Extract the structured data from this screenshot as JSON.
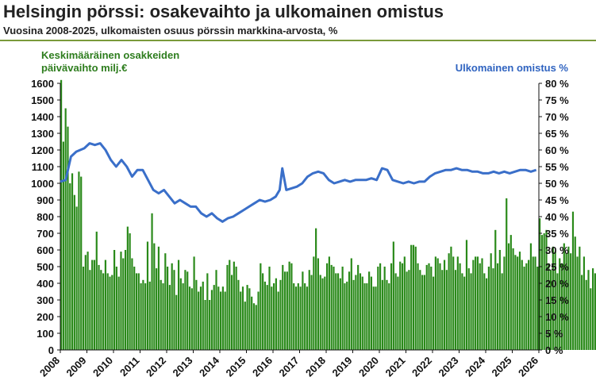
{
  "title": "Helsingin pörssi: osakevaihto ja ulkomainen omistus",
  "subtitle": "Vuosina 2008-2025, ulkomaisten osuus pörssin markkina-arvosta, %",
  "colors": {
    "bars": "#2a8a1a",
    "line": "#3a6fc9",
    "rule": "#7a9a3a"
  },
  "chart_data": {
    "type": "bar",
    "left_axis": {
      "label_line1": "Keskimääräinen osakkeiden",
      "label_line2": "päivävaihto milj.€",
      "ylim": [
        0,
        1600
      ],
      "ticks": [
        "0",
        "100",
        "200",
        "300",
        "400",
        "500",
        "600",
        "700",
        "800",
        "900",
        "1000",
        "1100",
        "1200",
        "1300",
        "1400",
        "1500",
        "1600"
      ]
    },
    "right_axis": {
      "label": "Ulkomainen omistus %",
      "ylim": [
        0,
        80
      ],
      "ticks": [
        "0 %",
        "5 %",
        "10 %",
        "15 %",
        "20 %",
        "25 %",
        "30 %",
        "35 %",
        "40 %",
        "45 %",
        "50 %",
        "55 %",
        "60 %",
        "65 %",
        "70 %",
        "75 %",
        "80 %"
      ]
    },
    "x_axis": {
      "ticks": [
        "2008",
        "2009",
        "2010",
        "2011",
        "2012",
        "2013",
        "2014",
        "2015",
        "2016",
        "2017",
        "2018",
        "2019",
        "2020",
        "2021",
        "2022",
        "2023",
        "2024",
        "2025",
        "2026"
      ],
      "range": [
        2008,
        2026
      ]
    },
    "series": [
      {
        "kind": "bar",
        "x_start": 2008.0,
        "step_months": 1,
        "values": [
          1620,
          1250,
          1450,
          1340,
          1000,
          1060,
          930,
          860,
          1070,
          1040,
          500,
          570,
          590,
          480,
          540,
          540,
          710,
          510,
          480,
          460,
          540,
          460,
          440,
          450,
          600,
          500,
          440,
          590,
          550,
          600,
          740,
          700,
          550,
          500,
          460,
          460,
          400,
          420,
          400,
          650,
          410,
          820,
          640,
          490,
          620,
          420,
          400,
          580,
          500,
          390,
          520,
          480,
          330,
          540,
          430,
          400,
          480,
          470,
          380,
          370,
          560,
          420,
          350,
          380,
          410,
          300,
          460,
          300,
          360,
          390,
          480,
          380,
          350,
          380,
          350,
          510,
          540,
          450,
          530,
          500,
          420,
          350,
          380,
          290,
          390,
          370,
          320,
          280,
          270,
          350,
          520,
          460,
          410,
          390,
          500,
          380,
          400,
          430,
          350,
          420,
          510,
          470,
          470,
          530,
          520,
          400,
          380,
          400,
          380,
          470,
          400,
          380,
          480,
          450,
          560,
          730,
          550,
          450,
          430,
          440,
          520,
          560,
          510,
          500,
          460,
          460,
          430,
          500,
          400,
          410,
          470,
          550,
          420,
          450,
          510,
          460,
          440,
          400,
          400,
          470,
          440,
          380,
          380,
          500,
          520,
          420,
          500,
          420,
          400,
          520,
          650,
          460,
          440,
          530,
          520,
          560,
          470,
          480,
          630,
          630,
          620,
          520,
          480,
          450,
          450,
          510,
          520,
          500,
          440,
          560,
          550,
          520,
          480,
          540,
          480,
          580,
          620,
          560,
          480,
          560,
          520,
          460,
          440,
          660,
          490,
          460,
          540,
          560,
          560,
          520,
          550,
          460,
          430,
          500,
          580,
          490,
          720,
          520,
          600,
          460,
          560,
          910,
          640,
          690,
          610,
          570,
          560,
          590,
          540,
          500,
          520,
          540,
          640,
          560,
          560,
          500,
          790,
          690,
          700,
          720,
          520,
          480,
          620,
          590,
          460,
          550,
          520,
          640,
          580,
          620,
          580,
          830,
          680,
          560,
          620,
          450,
          560,
          420,
          480,
          370,
          490,
          460,
          530,
          550,
          430,
          460,
          520,
          520,
          460,
          450,
          500,
          480,
          420,
          410,
          440,
          410,
          380,
          350,
          310,
          460,
          430,
          480,
          460,
          440,
          450,
          480,
          450,
          400,
          460,
          410,
          450,
          390,
          470,
          440,
          410,
          380,
          470,
          410,
          540,
          540,
          440,
          420,
          410,
          370,
          380,
          360,
          390,
          420,
          400,
          360
        ]
      },
      {
        "kind": "line",
        "points": [
          [
            2008.0,
            50.5
          ],
          [
            2008.2,
            51
          ],
          [
            2008.4,
            58
          ],
          [
            2008.6,
            59.5
          ],
          [
            2008.9,
            60.5
          ],
          [
            2009.1,
            62
          ],
          [
            2009.3,
            61.5
          ],
          [
            2009.5,
            62
          ],
          [
            2009.7,
            60
          ],
          [
            2009.9,
            57
          ],
          [
            2010.1,
            55
          ],
          [
            2010.3,
            57
          ],
          [
            2010.5,
            55
          ],
          [
            2010.7,
            52
          ],
          [
            2010.9,
            54
          ],
          [
            2011.1,
            54
          ],
          [
            2011.3,
            51
          ],
          [
            2011.5,
            48
          ],
          [
            2011.7,
            47
          ],
          [
            2011.9,
            48
          ],
          [
            2012.1,
            46
          ],
          [
            2012.3,
            44
          ],
          [
            2012.5,
            45
          ],
          [
            2012.7,
            44
          ],
          [
            2012.9,
            43
          ],
          [
            2013.1,
            43
          ],
          [
            2013.3,
            41
          ],
          [
            2013.5,
            40
          ],
          [
            2013.7,
            41
          ],
          [
            2013.9,
            39.5
          ],
          [
            2014.1,
            38.5
          ],
          [
            2014.3,
            39.5
          ],
          [
            2014.5,
            40
          ],
          [
            2014.7,
            41
          ],
          [
            2014.9,
            42
          ],
          [
            2015.1,
            43
          ],
          [
            2015.3,
            44
          ],
          [
            2015.5,
            45
          ],
          [
            2015.7,
            44.5
          ],
          [
            2015.9,
            45
          ],
          [
            2016.1,
            46
          ],
          [
            2016.25,
            48
          ],
          [
            2016.35,
            54.5
          ],
          [
            2016.5,
            48
          ],
          [
            2016.7,
            48.5
          ],
          [
            2016.9,
            49
          ],
          [
            2017.1,
            50
          ],
          [
            2017.3,
            52
          ],
          [
            2017.5,
            53
          ],
          [
            2017.7,
            53.5
          ],
          [
            2017.9,
            53
          ],
          [
            2018.1,
            51
          ],
          [
            2018.3,
            50
          ],
          [
            2018.5,
            50.5
          ],
          [
            2018.7,
            51
          ],
          [
            2018.9,
            50.5
          ],
          [
            2019.1,
            51
          ],
          [
            2019.3,
            51
          ],
          [
            2019.5,
            51
          ],
          [
            2019.7,
            51.5
          ],
          [
            2019.9,
            51
          ],
          [
            2020.1,
            54.5
          ],
          [
            2020.3,
            54
          ],
          [
            2020.5,
            51
          ],
          [
            2020.7,
            50.5
          ],
          [
            2020.9,
            50
          ],
          [
            2021.1,
            50.5
          ],
          [
            2021.3,
            50
          ],
          [
            2021.5,
            50.5
          ],
          [
            2021.7,
            50.5
          ],
          [
            2021.9,
            52
          ],
          [
            2022.1,
            53
          ],
          [
            2022.3,
            53.5
          ],
          [
            2022.5,
            54
          ],
          [
            2022.7,
            54
          ],
          [
            2022.9,
            54.5
          ],
          [
            2023.1,
            54
          ],
          [
            2023.3,
            54
          ],
          [
            2023.5,
            53.5
          ],
          [
            2023.7,
            53.5
          ],
          [
            2023.9,
            53
          ],
          [
            2024.1,
            53
          ],
          [
            2024.3,
            53.5
          ],
          [
            2024.5,
            53
          ],
          [
            2024.7,
            53.5
          ],
          [
            2024.9,
            53
          ],
          [
            2025.1,
            53.5
          ],
          [
            2025.3,
            54
          ],
          [
            2025.5,
            54
          ],
          [
            2025.7,
            53.5
          ],
          [
            2025.9,
            54
          ]
        ]
      }
    ]
  }
}
